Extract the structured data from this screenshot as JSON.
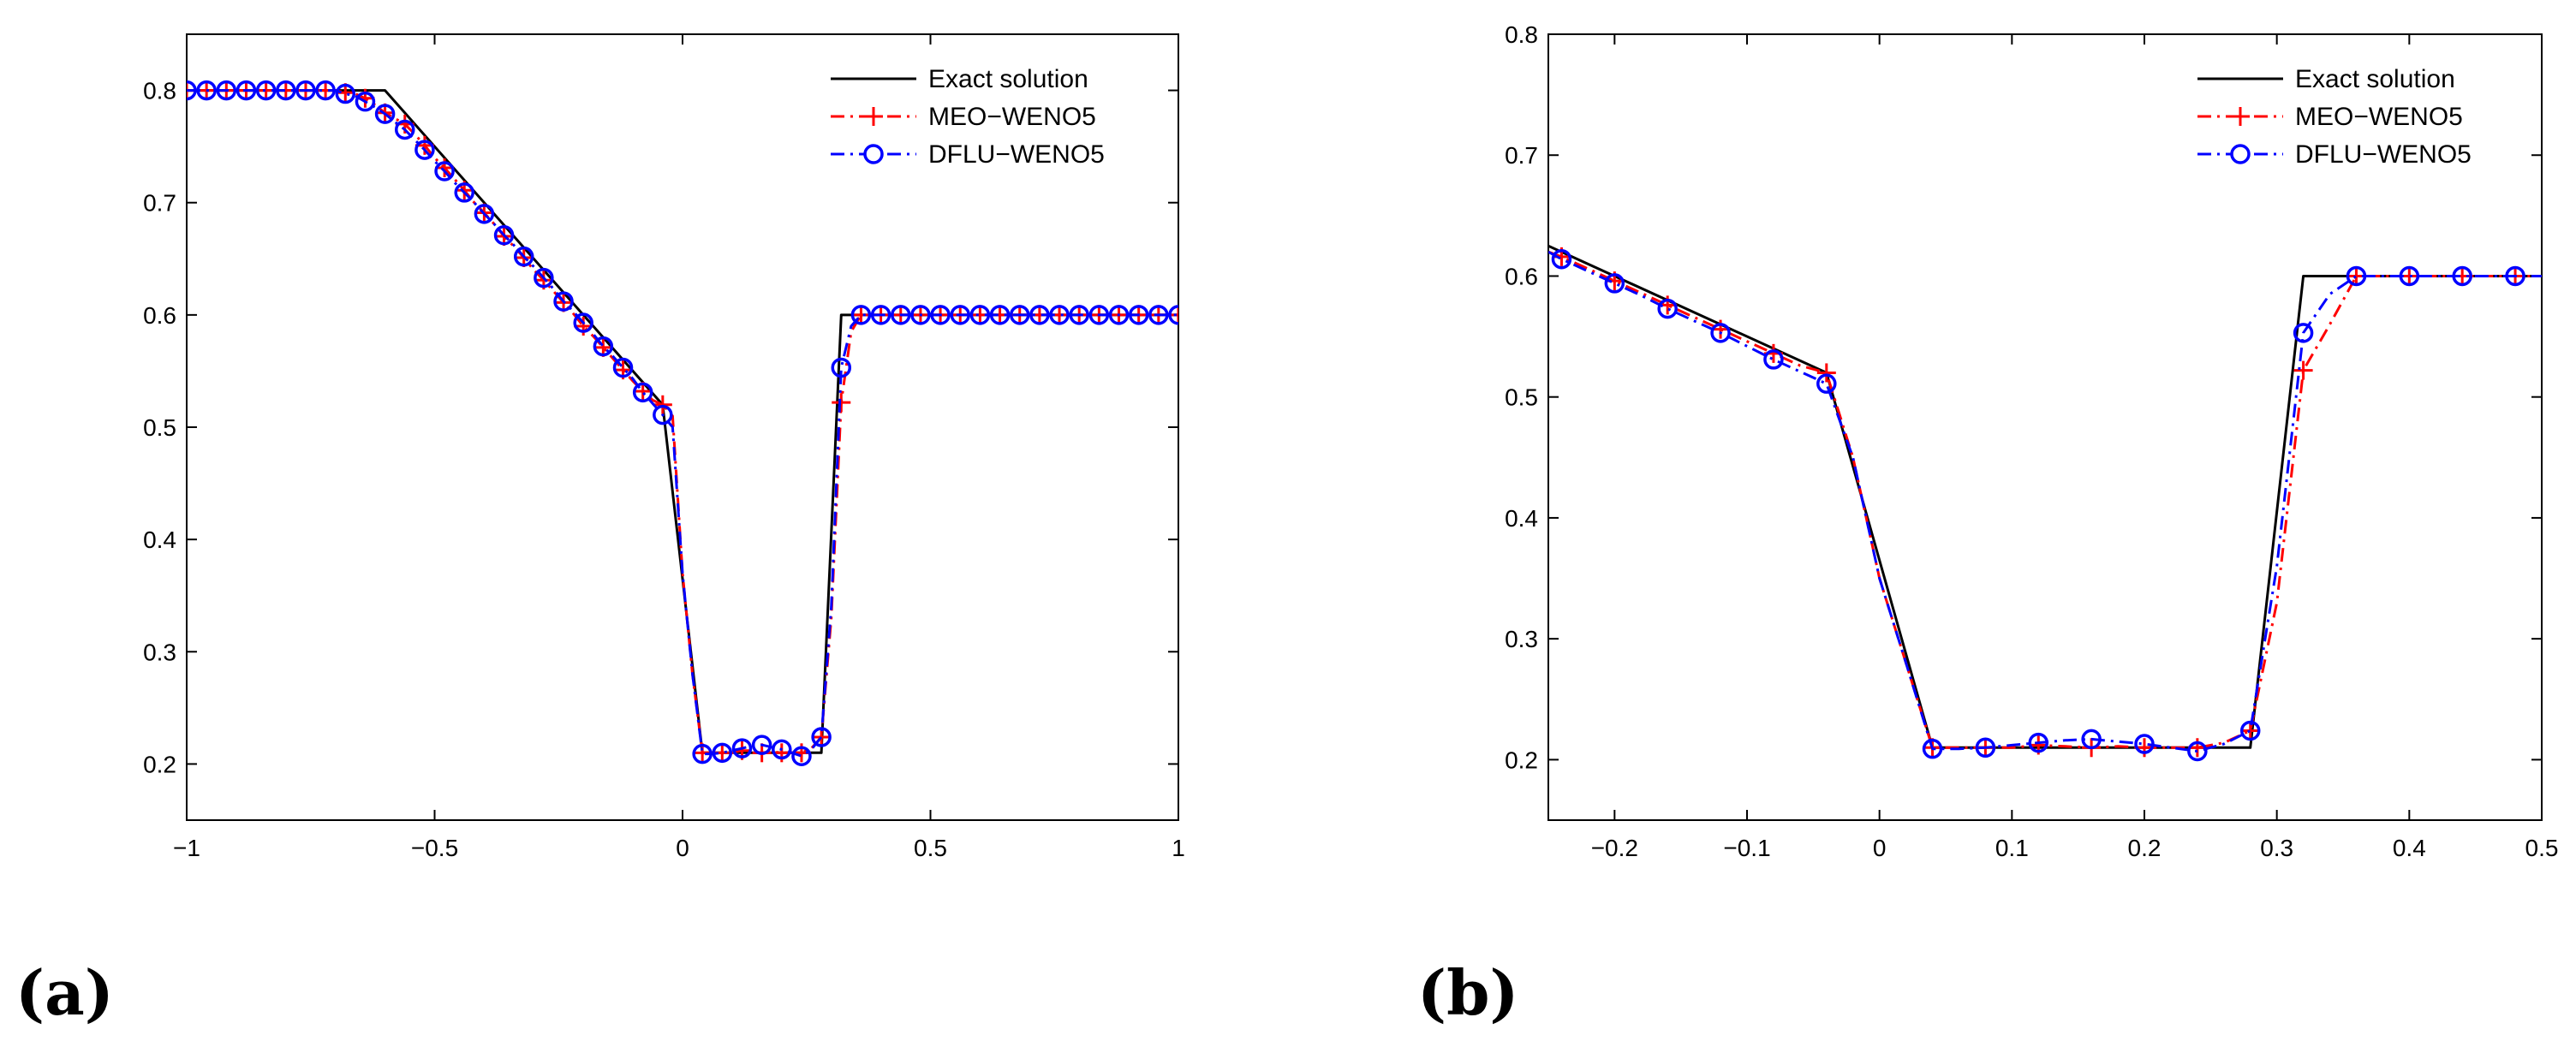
{
  "chart_data": [
    {
      "type": "line",
      "panel_label": "(a)",
      "xlim": [
        -1,
        1
      ],
      "ylim": [
        0.15,
        0.85
      ],
      "xticks": [
        -1,
        -0.5,
        0,
        0.5,
        1
      ],
      "xtick_labels": [
        "−1",
        "−0.5",
        "0",
        "0.5",
        "1"
      ],
      "yticks": [
        0.2,
        0.3,
        0.4,
        0.5,
        0.6,
        0.7,
        0.8
      ],
      "ytick_labels": [
        "0.2",
        "0.3",
        "0.4",
        "0.5",
        "0.6",
        "0.7",
        "0.8"
      ],
      "legend_position": "top-right",
      "series": [
        {
          "name": "Exact solution",
          "color": "#000000",
          "style": "solid",
          "marker": "none",
          "x": [
            -1,
            -0.6,
            -0.04,
            0.04,
            0.28,
            0.32,
            1
          ],
          "y": [
            0.8,
            0.8,
            0.52,
            0.21,
            0.21,
            0.6,
            0.6
          ]
        },
        {
          "name": "MEO−WENO5",
          "color": "#ff0000",
          "style": "dashdot",
          "marker": "plus",
          "x": [
            -1,
            -0.98,
            -0.96,
            -0.94,
            -0.92,
            -0.9,
            -0.88,
            -0.86,
            -0.84,
            -0.82,
            -0.8,
            -0.78,
            -0.76,
            -0.74,
            -0.72,
            -0.7,
            -0.68,
            -0.66,
            -0.64,
            -0.62,
            -0.6,
            -0.58,
            -0.56,
            -0.54,
            -0.52,
            -0.5,
            -0.48,
            -0.46,
            -0.44,
            -0.42,
            -0.4,
            -0.38,
            -0.36,
            -0.34,
            -0.32,
            -0.3,
            -0.28,
            -0.26,
            -0.24,
            -0.22,
            -0.2,
            -0.18,
            -0.16,
            -0.14,
            -0.12,
            -0.1,
            -0.08,
            -0.06,
            -0.04,
            -0.02,
            0,
            0.02,
            0.04,
            0.06,
            0.08,
            0.1,
            0.12,
            0.14,
            0.16,
            0.18,
            0.2,
            0.22,
            0.24,
            0.26,
            0.28,
            0.3,
            0.32,
            0.34,
            0.36,
            0.38,
            0.4,
            0.42,
            0.44,
            0.46,
            0.48,
            0.5,
            0.52,
            0.54,
            0.56,
            0.58,
            0.6,
            0.62,
            0.64,
            0.66,
            0.68,
            0.7,
            0.72,
            0.74,
            0.76,
            0.78,
            0.8,
            0.82,
            0.84,
            0.86,
            0.88,
            0.9,
            0.92,
            0.94,
            0.96,
            0.98,
            1
          ],
          "y": [
            0.8,
            0.8,
            0.8,
            0.8,
            0.8,
            0.8,
            0.8,
            0.8,
            0.8,
            0.8,
            0.8,
            0.8,
            0.8,
            0.8,
            0.8,
            0.8,
            0.798,
            0.797,
            0.793,
            0.787,
            0.78,
            0.775,
            0.77,
            0.761,
            0.751,
            0.74,
            0.731,
            0.721,
            0.711,
            0.7,
            0.691,
            0.681,
            0.67,
            0.661,
            0.651,
            0.64,
            0.631,
            0.621,
            0.611,
            0.601,
            0.59,
            0.581,
            0.571,
            0.561,
            0.551,
            0.541,
            0.532,
            0.524,
            0.52,
            0.51,
            0.37,
            0.28,
            0.21,
            0.21,
            0.21,
            0.21,
            0.212,
            0.211,
            0.21,
            0.211,
            0.21,
            0.21,
            0.21,
            0.214,
            0.224,
            0.33,
            0.522,
            0.585,
            0.6,
            0.6,
            0.6,
            0.6,
            0.6,
            0.6,
            0.6,
            0.6,
            0.6,
            0.6,
            0.6,
            0.6,
            0.6,
            0.6,
            0.6,
            0.6,
            0.6,
            0.6,
            0.6,
            0.6,
            0.6,
            0.6,
            0.6,
            0.6,
            0.6,
            0.6,
            0.6,
            0.6,
            0.6,
            0.6,
            0.6,
            0.6,
            0.6
          ],
          "marker_x": [
            -1,
            -0.96,
            -0.92,
            -0.88,
            -0.84,
            -0.8,
            -0.76,
            -0.72,
            -0.68,
            -0.64,
            -0.6,
            -0.56,
            -0.52,
            -0.48,
            -0.44,
            -0.4,
            -0.36,
            -0.32,
            -0.28,
            -0.24,
            -0.2,
            -0.16,
            -0.12,
            -0.08,
            -0.04,
            0.04,
            0.08,
            0.12,
            0.16,
            0.2,
            0.24,
            0.28,
            0.32,
            0.36,
            0.4,
            0.44,
            0.48,
            0.52,
            0.56,
            0.6,
            0.64,
            0.68,
            0.72,
            0.76,
            0.8,
            0.84,
            0.88,
            0.92,
            0.96,
            1
          ],
          "marker_y": [
            0.8,
            0.8,
            0.8,
            0.8,
            0.8,
            0.8,
            0.8,
            0.8,
            0.798,
            0.793,
            0.78,
            0.77,
            0.751,
            0.731,
            0.711,
            0.691,
            0.67,
            0.651,
            0.631,
            0.611,
            0.59,
            0.571,
            0.551,
            0.532,
            0.52,
            0.21,
            0.21,
            0.212,
            0.21,
            0.21,
            0.21,
            0.224,
            0.522,
            0.6,
            0.6,
            0.6,
            0.6,
            0.6,
            0.6,
            0.6,
            0.6,
            0.6,
            0.6,
            0.6,
            0.6,
            0.6,
            0.6,
            0.6,
            0.6,
            0.6
          ]
        },
        {
          "name": "DFLU−WENO5",
          "color": "#0000ff",
          "style": "dashdot",
          "marker": "circle",
          "x": [
            -1,
            -0.98,
            -0.96,
            -0.94,
            -0.92,
            -0.9,
            -0.88,
            -0.86,
            -0.84,
            -0.82,
            -0.8,
            -0.78,
            -0.76,
            -0.74,
            -0.72,
            -0.7,
            -0.68,
            -0.66,
            -0.64,
            -0.62,
            -0.6,
            -0.58,
            -0.56,
            -0.54,
            -0.52,
            -0.5,
            -0.48,
            -0.46,
            -0.44,
            -0.42,
            -0.4,
            -0.38,
            -0.36,
            -0.34,
            -0.32,
            -0.3,
            -0.28,
            -0.26,
            -0.24,
            -0.22,
            -0.2,
            -0.18,
            -0.16,
            -0.14,
            -0.12,
            -0.1,
            -0.08,
            -0.06,
            -0.04,
            -0.02,
            0,
            0.02,
            0.04,
            0.06,
            0.08,
            0.1,
            0.12,
            0.14,
            0.16,
            0.18,
            0.2,
            0.22,
            0.24,
            0.26,
            0.28,
            0.3,
            0.32,
            0.34,
            0.36,
            0.38,
            0.4,
            0.42,
            0.44,
            0.46,
            0.48,
            0.5,
            0.52,
            0.54,
            0.56,
            0.58,
            0.6,
            0.62,
            0.64,
            0.66,
            0.68,
            0.7,
            0.72,
            0.74,
            0.76,
            0.78,
            0.8,
            0.82,
            0.84,
            0.86,
            0.88,
            0.9,
            0.92,
            0.94,
            0.96,
            0.98,
            1
          ],
          "y": [
            0.8,
            0.8,
            0.8,
            0.8,
            0.8,
            0.8,
            0.8,
            0.8,
            0.8,
            0.8,
            0.8,
            0.8,
            0.8,
            0.8,
            0.8,
            0.8,
            0.797,
            0.795,
            0.79,
            0.785,
            0.779,
            0.772,
            0.765,
            0.756,
            0.747,
            0.737,
            0.728,
            0.718,
            0.709,
            0.7,
            0.69,
            0.681,
            0.671,
            0.662,
            0.652,
            0.643,
            0.633,
            0.623,
            0.612,
            0.603,
            0.593,
            0.583,
            0.572,
            0.563,
            0.553,
            0.543,
            0.531,
            0.521,
            0.511,
            0.5,
            0.37,
            0.28,
            0.209,
            0.209,
            0.21,
            0.212,
            0.214,
            0.216,
            0.217,
            0.215,
            0.213,
            0.21,
            0.207,
            0.213,
            0.224,
            0.34,
            0.553,
            0.59,
            0.6,
            0.6,
            0.6,
            0.6,
            0.6,
            0.6,
            0.6,
            0.6,
            0.6,
            0.6,
            0.6,
            0.6,
            0.6,
            0.6,
            0.6,
            0.6,
            0.6,
            0.6,
            0.6,
            0.6,
            0.6,
            0.6,
            0.6,
            0.6,
            0.6,
            0.6,
            0.6,
            0.6,
            0.6,
            0.6,
            0.6,
            0.6,
            0.6
          ],
          "marker_x": [
            -1,
            -0.96,
            -0.92,
            -0.88,
            -0.84,
            -0.8,
            -0.76,
            -0.72,
            -0.68,
            -0.64,
            -0.6,
            -0.56,
            -0.52,
            -0.48,
            -0.44,
            -0.4,
            -0.36,
            -0.32,
            -0.28,
            -0.24,
            -0.2,
            -0.16,
            -0.12,
            -0.08,
            -0.04,
            0.04,
            0.08,
            0.12,
            0.16,
            0.2,
            0.24,
            0.28,
            0.32,
            0.36,
            0.4,
            0.44,
            0.48,
            0.52,
            0.56,
            0.6,
            0.64,
            0.68,
            0.72,
            0.76,
            0.8,
            0.84,
            0.88,
            0.92,
            0.96,
            1
          ],
          "marker_y": [
            0.8,
            0.8,
            0.8,
            0.8,
            0.8,
            0.8,
            0.8,
            0.8,
            0.797,
            0.79,
            0.779,
            0.765,
            0.747,
            0.728,
            0.709,
            0.69,
            0.671,
            0.652,
            0.633,
            0.612,
            0.593,
            0.572,
            0.553,
            0.531,
            0.511,
            0.209,
            0.21,
            0.214,
            0.217,
            0.213,
            0.207,
            0.224,
            0.553,
            0.6,
            0.6,
            0.6,
            0.6,
            0.6,
            0.6,
            0.6,
            0.6,
            0.6,
            0.6,
            0.6,
            0.6,
            0.6,
            0.6,
            0.6,
            0.6,
            0.6
          ]
        }
      ]
    },
    {
      "type": "line",
      "panel_label": "(b)",
      "xlim": [
        -0.25,
        0.5
      ],
      "ylim": [
        0.15,
        0.8
      ],
      "xticks": [
        -0.2,
        -0.1,
        0,
        0.1,
        0.2,
        0.3,
        0.4,
        0.5
      ],
      "xtick_labels": [
        "−0.2",
        "−0.1",
        "0",
        "0.1",
        "0.2",
        "0.3",
        "0.4",
        "0.5"
      ],
      "yticks": [
        0.2,
        0.3,
        0.4,
        0.5,
        0.6,
        0.7,
        0.8
      ],
      "ytick_labels": [
        "0.2",
        "0.3",
        "0.4",
        "0.5",
        "0.6",
        "0.7",
        "0.8"
      ],
      "legend_position": "top-right",
      "series": [
        {
          "name": "Exact solution",
          "color": "#000000",
          "style": "solid",
          "marker": "none",
          "x": [
            -0.25,
            -0.04,
            0.04,
            0.28,
            0.32,
            0.5
          ],
          "y": [
            0.625,
            0.52,
            0.21,
            0.21,
            0.6,
            0.6
          ]
        },
        {
          "name": "MEO−WENO5",
          "color": "#ff0000",
          "style": "dashdot",
          "marker": "plus",
          "x": [
            -0.25,
            -0.24,
            -0.22,
            -0.2,
            -0.18,
            -0.16,
            -0.14,
            -0.12,
            -0.1,
            -0.08,
            -0.06,
            -0.04,
            -0.02,
            0,
            0.02,
            0.04,
            0.06,
            0.08,
            0.1,
            0.12,
            0.14,
            0.16,
            0.18,
            0.2,
            0.22,
            0.24,
            0.26,
            0.28,
            0.3,
            0.32,
            0.34,
            0.36,
            0.38,
            0.4,
            0.42,
            0.44,
            0.46,
            0.48,
            0.5
          ],
          "y": [
            0.62,
            0.616,
            0.606,
            0.596,
            0.586,
            0.576,
            0.566,
            0.556,
            0.546,
            0.536,
            0.526,
            0.52,
            0.45,
            0.35,
            0.28,
            0.21,
            0.21,
            0.21,
            0.21,
            0.212,
            0.211,
            0.21,
            0.211,
            0.21,
            0.21,
            0.21,
            0.214,
            0.224,
            0.33,
            0.522,
            0.56,
            0.6,
            0.6,
            0.6,
            0.6,
            0.6,
            0.6,
            0.6,
            0.6
          ],
          "marker_x": [
            -0.24,
            -0.2,
            -0.16,
            -0.12,
            -0.08,
            -0.04,
            0.04,
            0.08,
            0.12,
            0.16,
            0.2,
            0.24,
            0.28,
            0.32,
            0.36,
            0.4,
            0.44,
            0.48
          ],
          "marker_y": [
            0.616,
            0.596,
            0.576,
            0.556,
            0.536,
            0.52,
            0.21,
            0.21,
            0.212,
            0.21,
            0.21,
            0.21,
            0.224,
            0.522,
            0.6,
            0.6,
            0.6,
            0.6
          ]
        },
        {
          "name": "DFLU−WENO5",
          "color": "#0000ff",
          "style": "dashdot",
          "marker": "circle",
          "x": [
            -0.25,
            -0.24,
            -0.22,
            -0.2,
            -0.18,
            -0.16,
            -0.14,
            -0.12,
            -0.1,
            -0.08,
            -0.06,
            -0.04,
            -0.02,
            0,
            0.02,
            0.04,
            0.06,
            0.08,
            0.1,
            0.12,
            0.14,
            0.16,
            0.18,
            0.2,
            0.22,
            0.24,
            0.26,
            0.28,
            0.3,
            0.32,
            0.34,
            0.36,
            0.38,
            0.4,
            0.42,
            0.44,
            0.46,
            0.48,
            0.5
          ],
          "y": [
            0.62,
            0.614,
            0.604,
            0.594,
            0.584,
            0.573,
            0.563,
            0.553,
            0.542,
            0.531,
            0.521,
            0.511,
            0.45,
            0.35,
            0.28,
            0.209,
            0.209,
            0.21,
            0.212,
            0.214,
            0.216,
            0.217,
            0.215,
            0.213,
            0.21,
            0.207,
            0.213,
            0.224,
            0.36,
            0.553,
            0.585,
            0.6,
            0.6,
            0.6,
            0.6,
            0.6,
            0.6,
            0.6,
            0.6
          ],
          "marker_x": [
            -0.24,
            -0.2,
            -0.16,
            -0.12,
            -0.08,
            -0.04,
            0.04,
            0.08,
            0.12,
            0.16,
            0.2,
            0.24,
            0.28,
            0.32,
            0.36,
            0.4,
            0.44,
            0.48
          ],
          "marker_y": [
            0.614,
            0.594,
            0.573,
            0.553,
            0.531,
            0.511,
            0.209,
            0.21,
            0.214,
            0.217,
            0.213,
            0.207,
            0.224,
            0.553,
            0.6,
            0.6,
            0.6,
            0.6
          ]
        }
      ]
    }
  ]
}
